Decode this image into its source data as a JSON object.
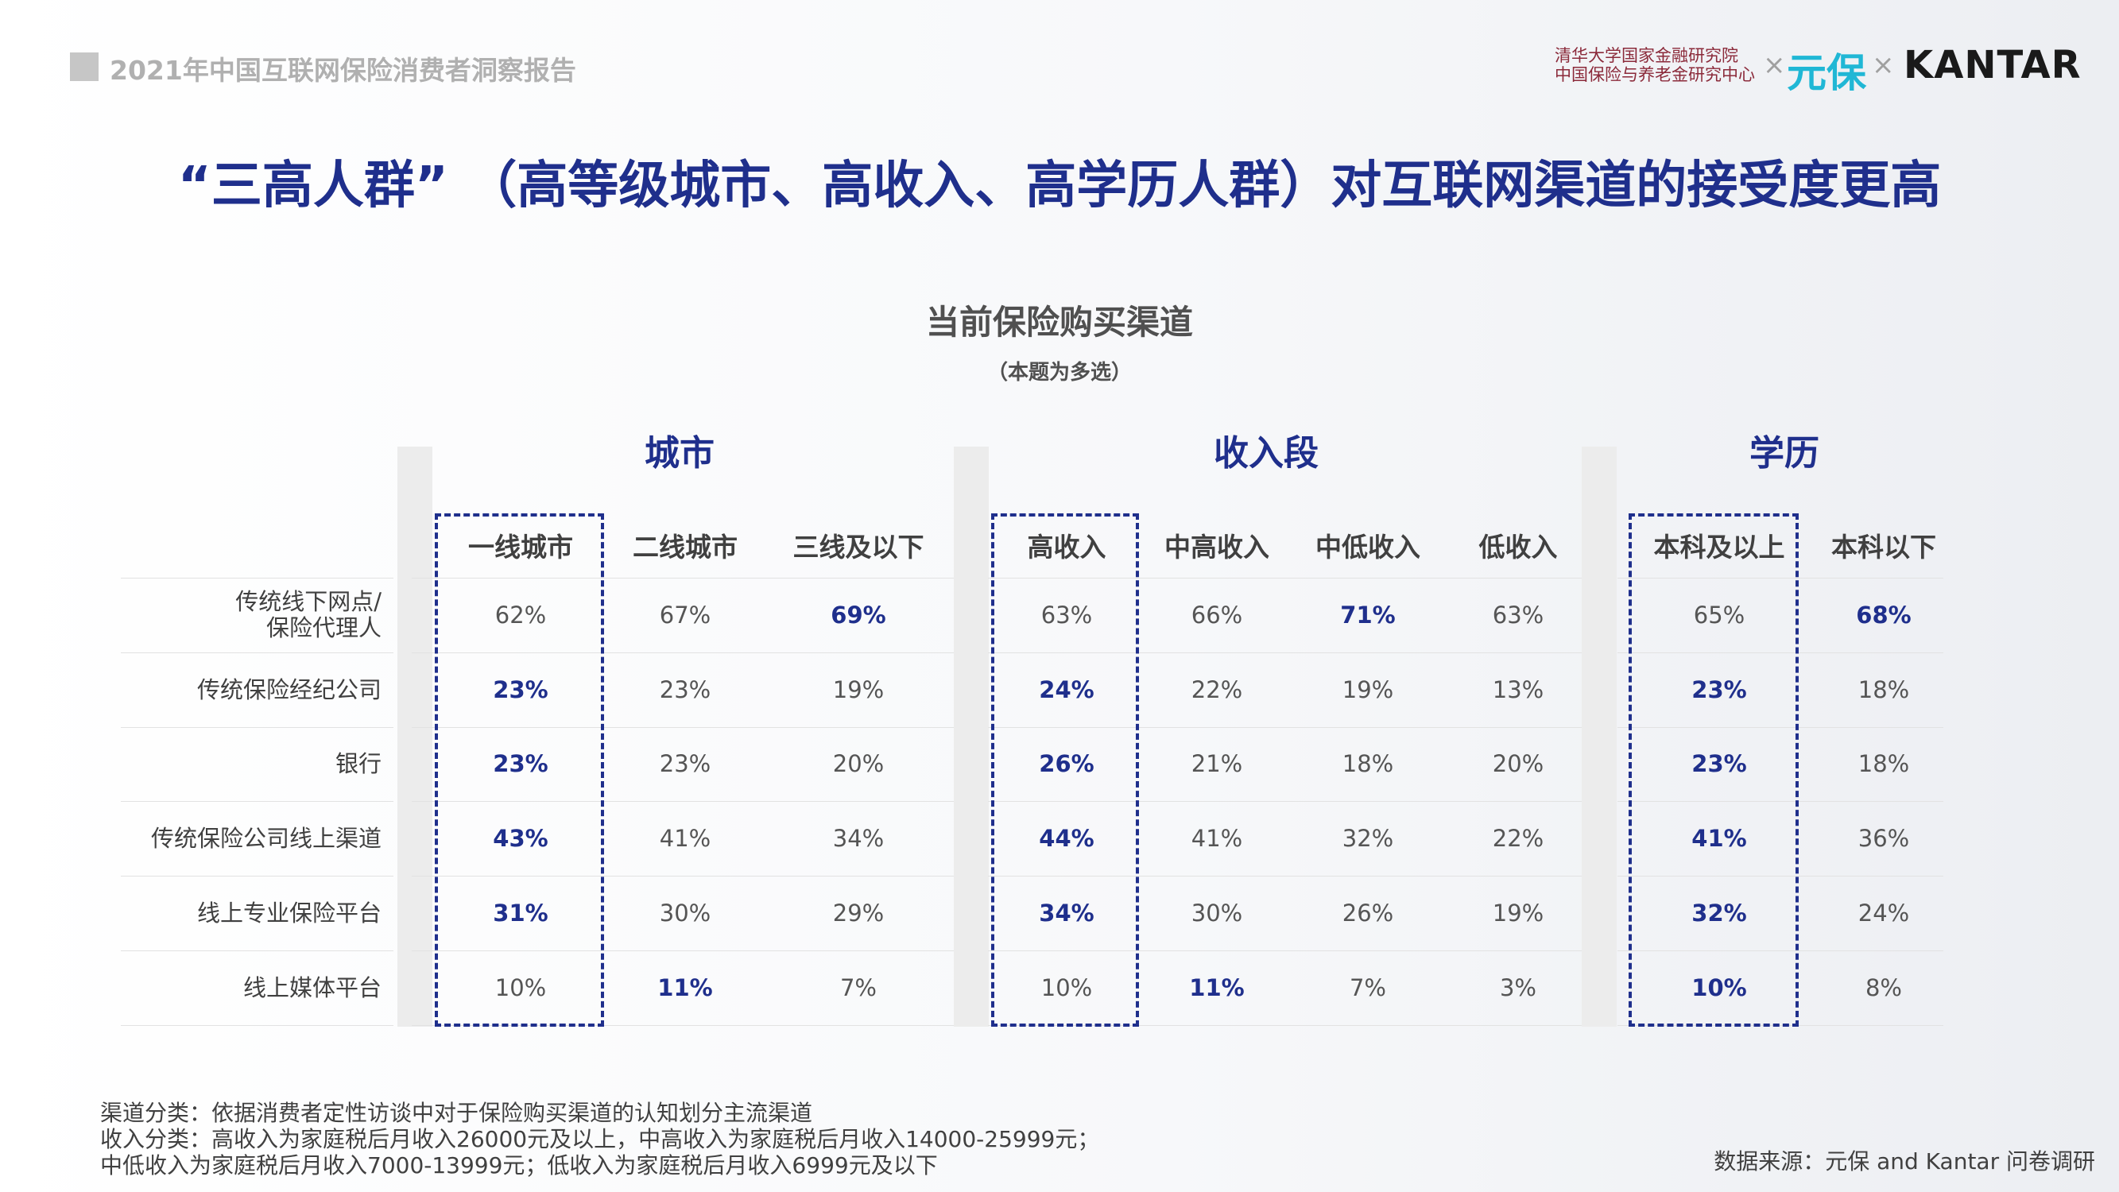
{
  "header": {
    "report_title": "2021年中国互联网保险消费者洞察报告",
    "logos": {
      "institute_line1": "清华大学国家金融研究院",
      "institute_line2": "中国保险与养老金研究中心",
      "separator": "×",
      "partner1": "元保",
      "partner2": "KANTAR"
    }
  },
  "title": "“三高人群” （高等级城市、高收入、高学历人群）对互联网渠道的接受度更高",
  "chart_title": "当前保险购买渠道",
  "chart_subtitle": "（本题为多选）",
  "groups": [
    {
      "title": "城市",
      "columns": [
        "一线城市",
        "二线城市",
        "三线及以下"
      ],
      "highlight_column": "一线城市"
    },
    {
      "title": "收入段",
      "columns": [
        "高收入",
        "中高收入",
        "中低收入",
        "低收入"
      ],
      "highlight_column": "高收入"
    },
    {
      "title": "学历",
      "columns": [
        "本科及以上",
        "本科以下"
      ],
      "highlight_column": "本科及以上"
    }
  ],
  "rows": [
    {
      "label_lines": [
        "传统线下网点/",
        "保险代理人"
      ],
      "values": [
        "62%",
        "67%",
        "69%",
        "63%",
        "66%",
        "71%",
        "63%",
        "65%",
        "68%"
      ],
      "bold": [
        false,
        false,
        true,
        false,
        false,
        true,
        false,
        false,
        true
      ]
    },
    {
      "label_lines": [
        "传统保险经纪公司"
      ],
      "values": [
        "23%",
        "23%",
        "19%",
        "24%",
        "22%",
        "19%",
        "13%",
        "23%",
        "18%"
      ],
      "bold": [
        true,
        false,
        false,
        true,
        false,
        false,
        false,
        true,
        false
      ]
    },
    {
      "label_lines": [
        "银行"
      ],
      "values": [
        "23%",
        "23%",
        "20%",
        "26%",
        "21%",
        "18%",
        "20%",
        "23%",
        "18%"
      ],
      "bold": [
        true,
        false,
        false,
        true,
        false,
        false,
        false,
        true,
        false
      ]
    },
    {
      "label_lines": [
        "传统保险公司线上渠道"
      ],
      "values": [
        "43%",
        "41%",
        "34%",
        "44%",
        "41%",
        "32%",
        "22%",
        "41%",
        "36%"
      ],
      "bold": [
        true,
        false,
        false,
        true,
        false,
        false,
        false,
        true,
        false
      ]
    },
    {
      "label_lines": [
        "线上专业保险平台"
      ],
      "values": [
        "31%",
        "30%",
        "29%",
        "34%",
        "30%",
        "26%",
        "19%",
        "32%",
        "24%"
      ],
      "bold": [
        true,
        false,
        false,
        true,
        false,
        false,
        false,
        true,
        false
      ]
    },
    {
      "label_lines": [
        "线上媒体平台"
      ],
      "values": [
        "10%",
        "11%",
        "7%",
        "10%",
        "11%",
        "7%",
        "3%",
        "10%",
        "8%"
      ],
      "bold": [
        false,
        true,
        false,
        false,
        true,
        false,
        false,
        true,
        false
      ]
    }
  ],
  "colors": {
    "accent": "#1f2f8c",
    "text": "#404040",
    "muted": "#b0b0b0",
    "brand_teal": "#20b7d5",
    "institute": "#8b2a3a"
  },
  "notes": [
    "渠道分类：依据消费者定性访谈中对于保险购买渠道的认知划分主流渠道",
    "收入分类：高收入为家庭税后月收入26000元及以上，中高收入为家庭税后月收入14000-25999元；",
    "中低收入为家庭税后月收入7000-13999元；低收入为家庭税后月收入6999元及以下"
  ],
  "source": "数据来源：元保 and Kantar 问卷调研"
}
